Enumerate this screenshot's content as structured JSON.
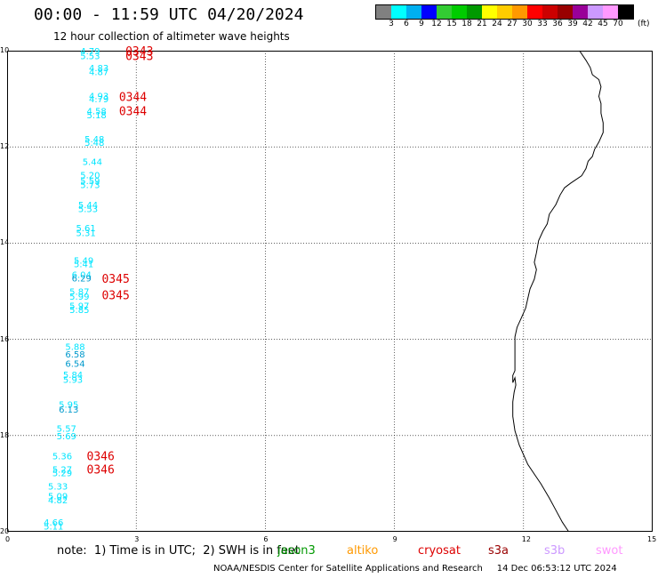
{
  "title": "00:00 - 11:59 UTC 04/20/2024",
  "subtitle": "12 hour collection of altimeter wave heights",
  "colorbar": {
    "unit": "(ft)",
    "colors": [
      "#808080",
      "#00ffff",
      "#00b0f0",
      "#0000ff",
      "#33cc33",
      "#00cc00",
      "#009900",
      "#ffff00",
      "#ffcc00",
      "#ff9900",
      "#ff0000",
      "#cc0000",
      "#990000",
      "#990099",
      "#cc99ff",
      "#ff99ff",
      "#000000"
    ],
    "labels": [
      "3",
      "6",
      "9",
      "12",
      "15",
      "18",
      "21",
      "24",
      "27",
      "30",
      "33",
      "36",
      "39",
      "42",
      "45",
      "70"
    ]
  },
  "axes": {
    "y_ticks": [
      "10",
      "12",
      "14",
      "16",
      "18",
      "20"
    ],
    "x_ticks": [
      "0",
      "3",
      "6",
      "9",
      "12",
      "15"
    ]
  },
  "wave_labels": [
    {
      "text": "4.79",
      "lon": 1.7,
      "lat": -10.0,
      "color": "#00e5ff"
    },
    {
      "text": "5.53",
      "lon": 1.7,
      "lat": -10.1,
      "color": "#00e5ff"
    },
    {
      "text": "4.83",
      "lon": 1.9,
      "lat": -10.35,
      "color": "#00e5ff"
    },
    {
      "text": "4.87",
      "lon": 1.9,
      "lat": -10.43,
      "color": "#00e5ff"
    },
    {
      "text": "4.93",
      "lon": 1.9,
      "lat": -10.93,
      "color": "#00e5ff"
    },
    {
      "text": "4.79",
      "lon": 1.9,
      "lat": -11.0,
      "color": "#00e5ff"
    },
    {
      "text": "4.58",
      "lon": 1.85,
      "lat": -11.25,
      "color": "#00e5ff"
    },
    {
      "text": "5.18",
      "lon": 1.85,
      "lat": -11.33,
      "color": "#00e5ff"
    },
    {
      "text": "5.48",
      "lon": 1.8,
      "lat": -11.83,
      "color": "#00e5ff"
    },
    {
      "text": "5.48",
      "lon": 1.8,
      "lat": -11.9,
      "color": "#00e5ff"
    },
    {
      "text": "5.44",
      "lon": 1.75,
      "lat": -12.3,
      "color": "#00e5ff"
    },
    {
      "text": "5.20",
      "lon": 1.7,
      "lat": -12.58,
      "color": "#00e5ff"
    },
    {
      "text": "5.59",
      "lon": 1.7,
      "lat": -12.7,
      "color": "#00e5ff"
    },
    {
      "text": "5.73",
      "lon": 1.7,
      "lat": -12.78,
      "color": "#00e5ff"
    },
    {
      "text": "5.44",
      "lon": 1.65,
      "lat": -13.2,
      "color": "#00e5ff"
    },
    {
      "text": "5.53",
      "lon": 1.65,
      "lat": -13.28,
      "color": "#00e5ff"
    },
    {
      "text": "5.61",
      "lon": 1.6,
      "lat": -13.68,
      "color": "#00e5ff"
    },
    {
      "text": "5.31",
      "lon": 1.6,
      "lat": -13.78,
      "color": "#00e5ff"
    },
    {
      "text": "5.49",
      "lon": 1.55,
      "lat": -14.35,
      "color": "#00e5ff"
    },
    {
      "text": "5.41",
      "lon": 1.55,
      "lat": -14.43,
      "color": "#00e5ff"
    },
    {
      "text": "6.04",
      "lon": 1.5,
      "lat": -14.65,
      "color": "#00e5ff"
    },
    {
      "text": "6.29",
      "lon": 1.5,
      "lat": -14.72,
      "color": "#0099cc"
    },
    {
      "text": "5.87",
      "lon": 1.45,
      "lat": -15.0,
      "color": "#00e5ff"
    },
    {
      "text": "5.99",
      "lon": 1.45,
      "lat": -15.1,
      "color": "#00e5ff"
    },
    {
      "text": "5.97",
      "lon": 1.45,
      "lat": -15.3,
      "color": "#00e5ff"
    },
    {
      "text": "5.85",
      "lon": 1.45,
      "lat": -15.38,
      "color": "#00e5ff"
    },
    {
      "text": "5.88",
      "lon": 1.35,
      "lat": -16.15,
      "color": "#00e5ff"
    },
    {
      "text": "6.58",
      "lon": 1.35,
      "lat": -16.3,
      "color": "#0099cc"
    },
    {
      "text": "6.54",
      "lon": 1.35,
      "lat": -16.5,
      "color": "#0099cc"
    },
    {
      "text": "5.84",
      "lon": 1.3,
      "lat": -16.73,
      "color": "#00e5ff"
    },
    {
      "text": "5.93",
      "lon": 1.3,
      "lat": -16.83,
      "color": "#00e5ff"
    },
    {
      "text": "5.95",
      "lon": 1.2,
      "lat": -17.35,
      "color": "#00e5ff"
    },
    {
      "text": "6.13",
      "lon": 1.2,
      "lat": -17.45,
      "color": "#0099cc"
    },
    {
      "text": "5.57",
      "lon": 1.15,
      "lat": -17.85,
      "color": "#00e5ff"
    },
    {
      "text": "5.69",
      "lon": 1.15,
      "lat": -18.0,
      "color": "#00e5ff"
    },
    {
      "text": "5.36",
      "lon": 1.05,
      "lat": -18.42,
      "color": "#00e5ff"
    },
    {
      "text": "5.27",
      "lon": 1.05,
      "lat": -18.7,
      "color": "#00e5ff"
    },
    {
      "text": "5.29",
      "lon": 1.05,
      "lat": -18.77,
      "color": "#00e5ff"
    },
    {
      "text": "5.33",
      "lon": 0.95,
      "lat": -19.05,
      "color": "#00e5ff"
    },
    {
      "text": "5.09",
      "lon": 0.95,
      "lat": -19.25,
      "color": "#00e5ff"
    },
    {
      "text": "4.82",
      "lon": 0.95,
      "lat": -19.33,
      "color": "#00e5ff"
    },
    {
      "text": "4.66",
      "lon": 0.85,
      "lat": -19.8,
      "color": "#00e5ff"
    },
    {
      "text": "5.11",
      "lon": 0.85,
      "lat": -19.88,
      "color": "#00e5ff"
    }
  ],
  "time_labels": [
    {
      "text": "0343",
      "lon": 2.75,
      "lat": -10.0,
      "color": "#dd0000"
    },
    {
      "text": "0343",
      "lon": 2.75,
      "lat": -10.1,
      "color": "#dd0000"
    },
    {
      "text": "0344",
      "lon": 2.6,
      "lat": -10.95,
      "color": "#dd0000"
    },
    {
      "text": "0344",
      "lon": 2.6,
      "lat": -11.25,
      "color": "#dd0000"
    },
    {
      "text": "0345",
      "lon": 2.2,
      "lat": -14.73,
      "color": "#dd0000"
    },
    {
      "text": "0345",
      "lon": 2.2,
      "lat": -15.07,
      "color": "#dd0000"
    },
    {
      "text": "0346",
      "lon": 1.85,
      "lat": -18.42,
      "color": "#dd0000"
    },
    {
      "text": "0346",
      "lon": 1.85,
      "lat": -18.7,
      "color": "#dd0000"
    }
  ],
  "coastline": [
    [
      13.3,
      -10.0
    ],
    [
      13.45,
      -10.2
    ],
    [
      13.55,
      -10.35
    ],
    [
      13.6,
      -10.5
    ],
    [
      13.75,
      -10.6
    ],
    [
      13.8,
      -10.75
    ],
    [
      13.75,
      -10.95
    ],
    [
      13.8,
      -11.1
    ],
    [
      13.8,
      -11.3
    ],
    [
      13.85,
      -11.5
    ],
    [
      13.85,
      -11.7
    ],
    [
      13.75,
      -11.9
    ],
    [
      13.65,
      -12.05
    ],
    [
      13.6,
      -12.2
    ],
    [
      13.5,
      -12.3
    ],
    [
      13.45,
      -12.45
    ],
    [
      13.35,
      -12.6
    ],
    [
      13.1,
      -12.75
    ],
    [
      12.95,
      -12.85
    ],
    [
      12.85,
      -13.0
    ],
    [
      12.75,
      -13.2
    ],
    [
      12.6,
      -13.4
    ],
    [
      12.55,
      -13.6
    ],
    [
      12.45,
      -13.75
    ],
    [
      12.35,
      -13.95
    ],
    [
      12.3,
      -14.2
    ],
    [
      12.25,
      -14.4
    ],
    [
      12.3,
      -14.55
    ],
    [
      12.25,
      -14.75
    ],
    [
      12.15,
      -14.95
    ],
    [
      12.1,
      -15.15
    ],
    [
      12.05,
      -15.35
    ],
    [
      11.95,
      -15.55
    ],
    [
      11.85,
      -15.75
    ],
    [
      11.8,
      -15.95
    ],
    [
      11.8,
      -16.2
    ],
    [
      11.8,
      -16.45
    ],
    [
      11.8,
      -16.65
    ],
    [
      11.75,
      -16.75
    ],
    [
      11.75,
      -16.9
    ],
    [
      11.8,
      -16.8
    ],
    [
      11.82,
      -16.95
    ],
    [
      11.78,
      -17.1
    ],
    [
      11.75,
      -17.3
    ],
    [
      11.75,
      -17.6
    ],
    [
      11.8,
      -17.9
    ],
    [
      11.9,
      -18.2
    ],
    [
      12.0,
      -18.4
    ],
    [
      12.1,
      -18.6
    ],
    [
      12.25,
      -18.8
    ],
    [
      12.4,
      -19.0
    ],
    [
      12.6,
      -19.3
    ],
    [
      12.75,
      -19.55
    ],
    [
      12.9,
      -19.8
    ],
    [
      13.05,
      -20.0
    ]
  ],
  "footnote": "note:  1) Time is in UTC;  2) SWH is in feet",
  "satellites": [
    {
      "name": "jason3",
      "color": "#009900"
    },
    {
      "name": "altiko",
      "color": "#ff9900"
    },
    {
      "name": "cryosat",
      "color": "#dd0000"
    },
    {
      "name": "s3a",
      "color": "#990000"
    },
    {
      "name": "s3b",
      "color": "#cc99ff"
    },
    {
      "name": "swot",
      "color": "#ff99ff"
    }
  ],
  "credit": "NOAA/NESDIS Center for Satellite Applications and Research     14 Dec 06:53:12 UTC 2024"
}
